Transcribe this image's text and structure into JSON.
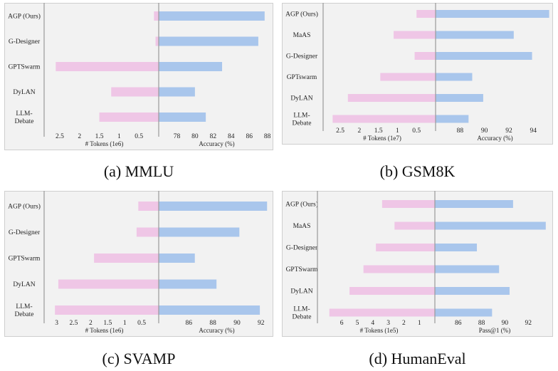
{
  "chart_data": [
    {
      "type": "bar",
      "caption": "(a) MMLU",
      "categories": [
        "AGP (Ours)",
        "G-Designer",
        "GPTSwarm",
        "DyLAN",
        "LLM-\nDebate"
      ],
      "tokens": {
        "xlabel": "# Tokens (1e6)",
        "values": [
          0.12,
          0.08,
          2.6,
          1.2,
          1.5
        ],
        "ticks": [
          "2.5",
          "2",
          "1.5",
          "1",
          "0.5"
        ],
        "xlim": [
          2.75,
          0
        ]
      },
      "accuracy": {
        "xlabel": "Accuracy (%)",
        "values": [
          87.7,
          87.0,
          83.0,
          80.0,
          81.2
        ],
        "ticks": [
          "78",
          "80",
          "82",
          "84",
          "86",
          "88"
        ],
        "xlim": [
          76,
          88.5
        ]
      }
    },
    {
      "type": "bar",
      "caption": "(b) GSM8K",
      "categories": [
        "AGP (Ours)",
        "MaAS",
        "G-Designer",
        "GPTswarm",
        "DyLAN",
        "LLM-\nDebate"
      ],
      "tokens": {
        "xlabel": "# Tokens (1e7)",
        "values": [
          0.5,
          1.1,
          0.55,
          1.45,
          2.3,
          2.7
        ],
        "ticks": [
          "2.5",
          "2",
          "1.5",
          "1",
          "0.5"
        ],
        "xlim": [
          2.8,
          0
        ]
      },
      "accuracy": {
        "xlabel": "Accuracy (%)",
        "values": [
          95.3,
          92.4,
          93.9,
          89.0,
          89.9,
          88.7
        ],
        "ticks": [
          "88",
          "90",
          "92",
          "94"
        ],
        "xlim": [
          86,
          95.5
        ]
      }
    },
    {
      "type": "bar",
      "caption": "(c) SVAMP",
      "categories": [
        "AGP (Ours)",
        "G-Designer",
        "GPTSwarm",
        "DyLAN",
        "LLM-\nDebate"
      ],
      "tokens": {
        "xlabel": "# Tokens (1e6)",
        "values": [
          0.6,
          0.65,
          1.9,
          2.95,
          3.05
        ],
        "ticks": [
          "3",
          "2.5",
          "2",
          "1.5",
          "1",
          "0.5"
        ],
        "xlim": [
          3.2,
          0
        ]
      },
      "accuracy": {
        "xlabel": "Accuracy (%)",
        "values": [
          92.5,
          90.2,
          86.5,
          88.3,
          91.9
        ],
        "ticks": [
          "86",
          "88",
          "90",
          "92"
        ],
        "xlim": [
          83.5,
          92.9
        ]
      }
    },
    {
      "type": "bar",
      "caption": "(d) HumanEval",
      "categories": [
        "AGP (Ours)",
        "MaAS",
        "G-Designer",
        "GPTSwarm",
        "DyLAN",
        "LLM-\nDebate"
      ],
      "tokens": {
        "xlabel": "# Tokens (1e5)",
        "values": [
          3.4,
          2.6,
          3.8,
          4.6,
          5.5,
          6.8
        ],
        "ticks": [
          "6",
          "5",
          "4",
          "3",
          "2",
          "1"
        ],
        "xlim": [
          7.2,
          0
        ]
      },
      "accuracy": {
        "xlabel": "Pass@1 (%)",
        "values": [
          90.7,
          93.5,
          87.6,
          89.5,
          90.4,
          88.9
        ],
        "ticks": [
          "86",
          "88",
          "90",
          "92"
        ],
        "xlim": [
          84,
          94
        ]
      }
    }
  ]
}
